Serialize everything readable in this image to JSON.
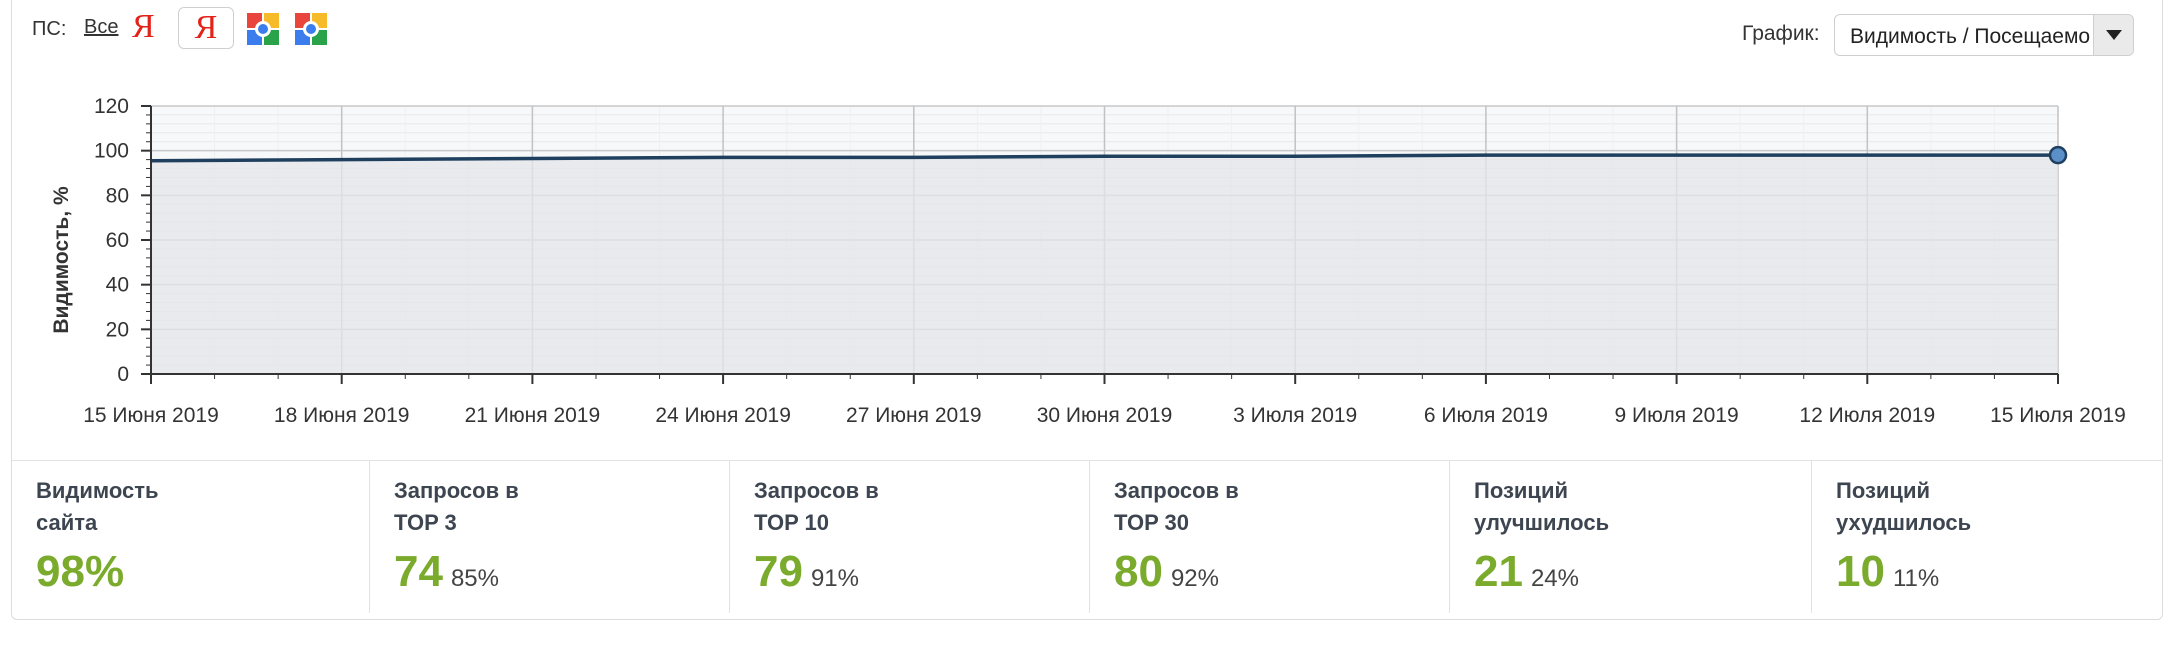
{
  "toolbar": {
    "ps_label": "ПС:",
    "ps_all": "Все",
    "engines": [
      {
        "name": "Яндекс",
        "glyph": "Я"
      },
      {
        "name": "Яндекс",
        "glyph": "Я"
      },
      {
        "name": "Google",
        "glyph": "g"
      },
      {
        "name": "Google",
        "glyph": "g"
      }
    ],
    "graph_label": "График:",
    "graph_select": "Видимость / Посещаемость"
  },
  "colors": {
    "line": "#1f3f5e",
    "area": "#e3e6ea",
    "marker": "#5b8fc7",
    "accent": "#7aab2c"
  },
  "chart_data": {
    "type": "area",
    "ylabel": "Видимость, %",
    "xlabel": "",
    "ylim": [
      0,
      120
    ],
    "yticks": [
      0,
      20,
      40,
      60,
      80,
      100,
      120
    ],
    "x_tick_labels": [
      "15 Июня 2019",
      "18 Июня 2019",
      "21 Июня 2019",
      "24 Июня 2019",
      "27 Июня 2019",
      "30 Июня 2019",
      "3 Июля 2019",
      "6 Июля 2019",
      "9 Июля 2019",
      "12 Июля 2019",
      "15 Июля 2019"
    ],
    "x_days": 30,
    "series": [
      {
        "name": "Видимость",
        "x": [
          0,
          3,
          6,
          9,
          12,
          15,
          18,
          21,
          24,
          27,
          30
        ],
        "values": [
          95.5,
          96,
          96.5,
          97,
          97,
          97.5,
          97.5,
          98,
          98,
          98,
          98
        ]
      }
    ],
    "grid": true
  },
  "stats": [
    {
      "title_line1": "Видимость",
      "title_line2": "сайта",
      "value": "98%",
      "percent": ""
    },
    {
      "title_line1": "Запросов в",
      "title_line2": "TOP 3",
      "value": "74",
      "percent": "85%"
    },
    {
      "title_line1": "Запросов в",
      "title_line2": "TOP 10",
      "value": "79",
      "percent": "91%"
    },
    {
      "title_line1": "Запросов в",
      "title_line2": "TOP 30",
      "value": "80",
      "percent": "92%"
    },
    {
      "title_line1": "Позиций",
      "title_line2": "улучшилось",
      "value": "21",
      "percent": "24%"
    },
    {
      "title_line1": "Позиций",
      "title_line2": "ухудшилось",
      "value": "10",
      "percent": "11%"
    }
  ]
}
